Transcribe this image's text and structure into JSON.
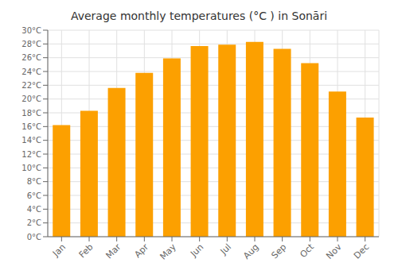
{
  "chart_data": {
    "type": "bar",
    "title": "Average monthly temperatures (°C ) in Sonāri",
    "categories": [
      "Jan",
      "Feb",
      "Mar",
      "Apr",
      "May",
      "Jun",
      "Jul",
      "Aug",
      "Sep",
      "Oct",
      "Nov",
      "Dec"
    ],
    "values": [
      16.2,
      18.3,
      21.6,
      23.8,
      25.9,
      27.7,
      27.9,
      28.3,
      27.3,
      25.2,
      21.1,
      17.3
    ],
    "color": "#FCA000",
    "ylim": [
      0,
      30
    ],
    "yticks": [
      {
        "value": 0,
        "label": "0°C"
      },
      {
        "value": 2,
        "label": "2°C"
      },
      {
        "value": 4,
        "label": "4°C"
      },
      {
        "value": 6,
        "label": "6°C"
      },
      {
        "value": 8,
        "label": "8°C"
      },
      {
        "value": 10,
        "label": "10°C"
      },
      {
        "value": 12,
        "label": "12°C"
      },
      {
        "value": 14,
        "label": "14°C"
      },
      {
        "value": 16,
        "label": "16°C"
      },
      {
        "value": 18,
        "label": "18°C"
      },
      {
        "value": 20,
        "label": "20°C"
      },
      {
        "value": 22,
        "label": "22°C"
      },
      {
        "value": 24,
        "label": "24°C"
      },
      {
        "value": 26,
        "label": "26°C"
      },
      {
        "value": 28,
        "label": "28°C"
      },
      {
        "value": 30,
        "label": "30°C"
      }
    ],
    "grid": true
  }
}
